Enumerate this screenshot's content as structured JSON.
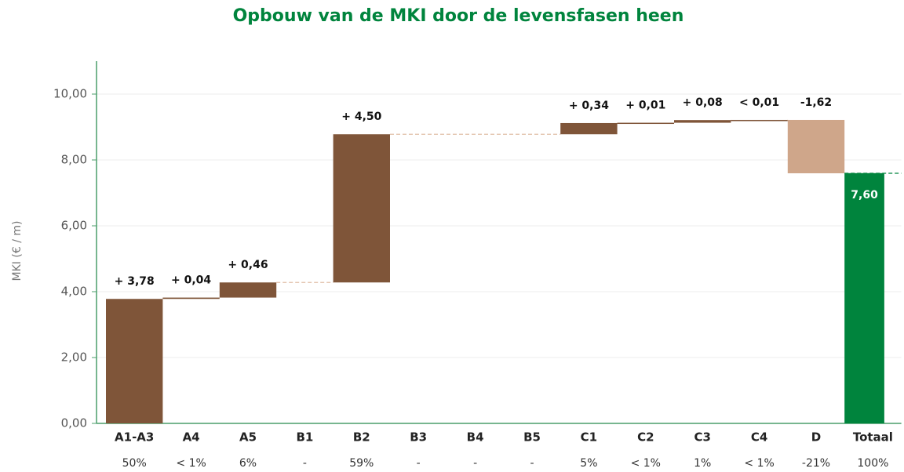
{
  "chart_data": {
    "type": "waterfall",
    "title": "Opbouw van de MKI door de levensfasen heen",
    "ylabel": "MKI (€ / m)",
    "categories": [
      "A1-A3",
      "A4",
      "A5",
      "B1",
      "B2",
      "B3",
      "B4",
      "B5",
      "C1",
      "C2",
      "C3",
      "C4",
      "D",
      "Totaal"
    ],
    "values": [
      3.78,
      0.04,
      0.46,
      null,
      4.5,
      null,
      null,
      null,
      0.34,
      0.01,
      0.08,
      0.005,
      -1.62,
      7.6
    ],
    "value_labels": [
      "+ 3,78",
      "+ 0,04",
      "+ 0,46",
      null,
      "+ 4,50",
      null,
      null,
      null,
      "+ 0,34",
      "+ 0,01",
      "+ 0,08",
      "< 0,01",
      "-1,62",
      "7,60"
    ],
    "measure": [
      "relative",
      "relative",
      "relative",
      "relative",
      "relative",
      "relative",
      "relative",
      "relative",
      "relative",
      "relative",
      "relative",
      "relative",
      "relative",
      "total"
    ],
    "shares": [
      "50%",
      "< 1%",
      "6%",
      "-",
      "59%",
      "-",
      "-",
      "-",
      "5%",
      "< 1%",
      "1%",
      "< 1%",
      "-21%",
      "100%"
    ],
    "colors": {
      "increase": "#7f5539",
      "decrease": "#cfa68a",
      "total": "#00843d"
    },
    "ylim": [
      0,
      11
    ],
    "yticks": [
      {
        "value": 0,
        "label": "0,00"
      },
      {
        "value": 2,
        "label": "2,00"
      },
      {
        "value": 4,
        "label": "4,00"
      },
      {
        "value": 6,
        "label": "6,00"
      },
      {
        "value": 8,
        "label": "8,00"
      },
      {
        "value": 10,
        "label": "10,00"
      }
    ],
    "grid": true
  }
}
